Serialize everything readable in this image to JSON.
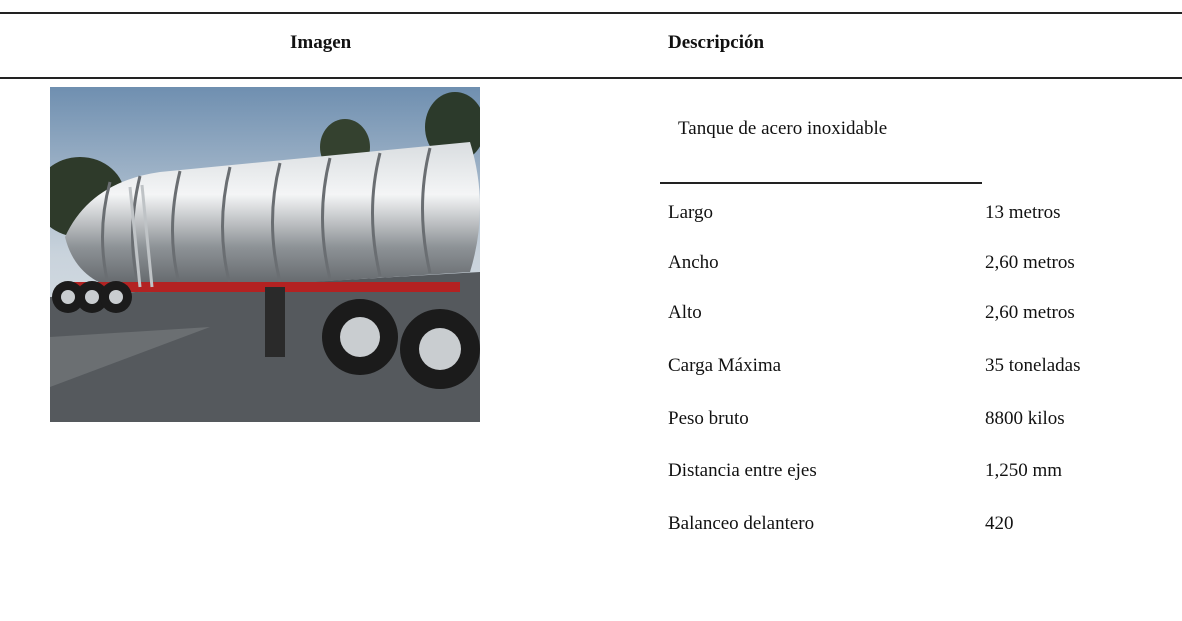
{
  "header": {
    "columns": [
      "Imagen",
      "Descripción"
    ]
  },
  "description": {
    "title": "Tanque de acero inoxidable",
    "specs": [
      [
        "Largo",
        "13 metros"
      ],
      [
        "Ancho",
        "2,60 metros"
      ],
      [
        "Alto",
        "2,60 metros"
      ],
      [
        "Carga Máxima",
        "35 toneladas"
      ],
      [
        "Peso bruto",
        "8800 kilos"
      ],
      [
        "Distancia entre ejes",
        "1,250 mm"
      ],
      [
        "Balanceo delantero",
        "420"
      ]
    ]
  }
}
